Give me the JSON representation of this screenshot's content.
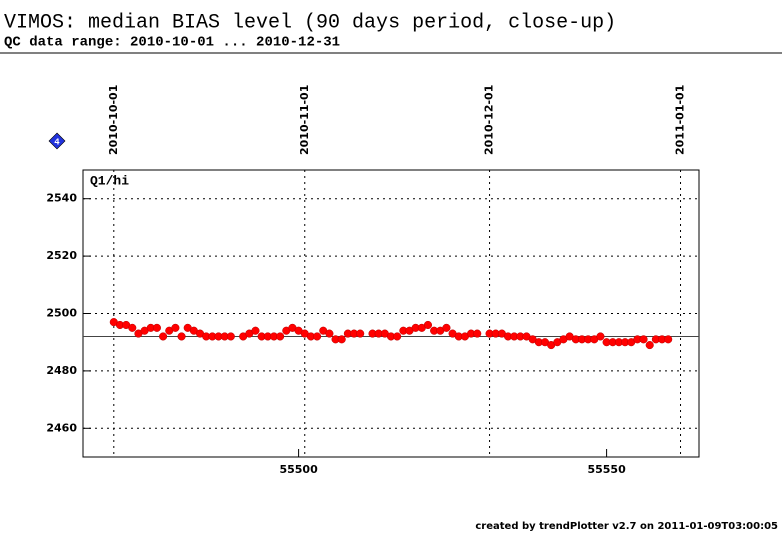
{
  "chart_data": {
    "type": "scatter",
    "title": "VIMOS: median BIAS level (90 days period, close-up)",
    "subtitle": "QC data range: 2010-10-01 ... 2010-12-31",
    "panel_label": "Q1/hi",
    "badge": "4",
    "footer": "created by trendPlotter v2.7 on 2011-01-09T03:00:05",
    "xlim": [
      55465,
      55565
    ],
    "ylim": [
      2450,
      2550
    ],
    "xticks": [
      55500,
      55550
    ],
    "x2ticks": [
      {
        "value": 55470,
        "label": "2010-10-01"
      },
      {
        "value": 55501,
        "label": "2010-11-01"
      },
      {
        "value": 55531,
        "label": "2010-12-01"
      },
      {
        "value": 55562,
        "label": "2011-01-01"
      }
    ],
    "yticks": [
      2460,
      2480,
      2500,
      2520,
      2540
    ],
    "reference_line": 2492,
    "grid": true,
    "series": [
      {
        "color": "#ff0000",
        "x": [
          55470,
          55471,
          55472,
          55473,
          55474,
          55475,
          55476,
          55477,
          55478,
          55479,
          55480,
          55481,
          55482,
          55483,
          55484,
          55485,
          55486,
          55487,
          55488,
          55489,
          55491,
          55492,
          55493,
          55494,
          55495,
          55496,
          55497,
          55498,
          55499,
          55500,
          55501,
          55502,
          55503,
          55504,
          55505,
          55506,
          55507,
          55508,
          55509,
          55510,
          55512,
          55513,
          55514,
          55515,
          55516,
          55517,
          55518,
          55519,
          55520,
          55521,
          55522,
          55523,
          55524,
          55525,
          55526,
          55527,
          55528,
          55529,
          55531,
          55532,
          55533,
          55534,
          55535,
          55536,
          55537,
          55538,
          55539,
          55540,
          55541,
          55542,
          55543,
          55544,
          55545,
          55546,
          55547,
          55548,
          55549,
          55550,
          55551,
          55552,
          55553,
          55554,
          55555,
          55556,
          55557,
          55558,
          55559,
          55560
        ],
        "values": [
          2497,
          2496,
          2496,
          2495,
          2493,
          2494,
          2495,
          2495,
          2492,
          2494,
          2495,
          2492,
          2495,
          2494,
          2493,
          2492,
          2492,
          2492,
          2492,
          2492,
          2492,
          2493,
          2494,
          2492,
          2492,
          2492,
          2492,
          2494,
          2495,
          2494,
          2493,
          2492,
          2492,
          2494,
          2493,
          2491,
          2491,
          2493,
          2493,
          2493,
          2493,
          2493,
          2493,
          2492,
          2492,
          2494,
          2494,
          2495,
          2495,
          2496,
          2494,
          2494,
          2495,
          2493,
          2492,
          2492,
          2493,
          2493,
          2493,
          2493,
          2493,
          2492,
          2492,
          2492,
          2492,
          2491,
          2490,
          2490,
          2489,
          2490,
          2491,
          2492,
          2491,
          2491,
          2491,
          2491,
          2492,
          2490,
          2490,
          2490,
          2490,
          2490,
          2491,
          2491,
          2489,
          2491,
          2491,
          2491
        ]
      }
    ]
  }
}
